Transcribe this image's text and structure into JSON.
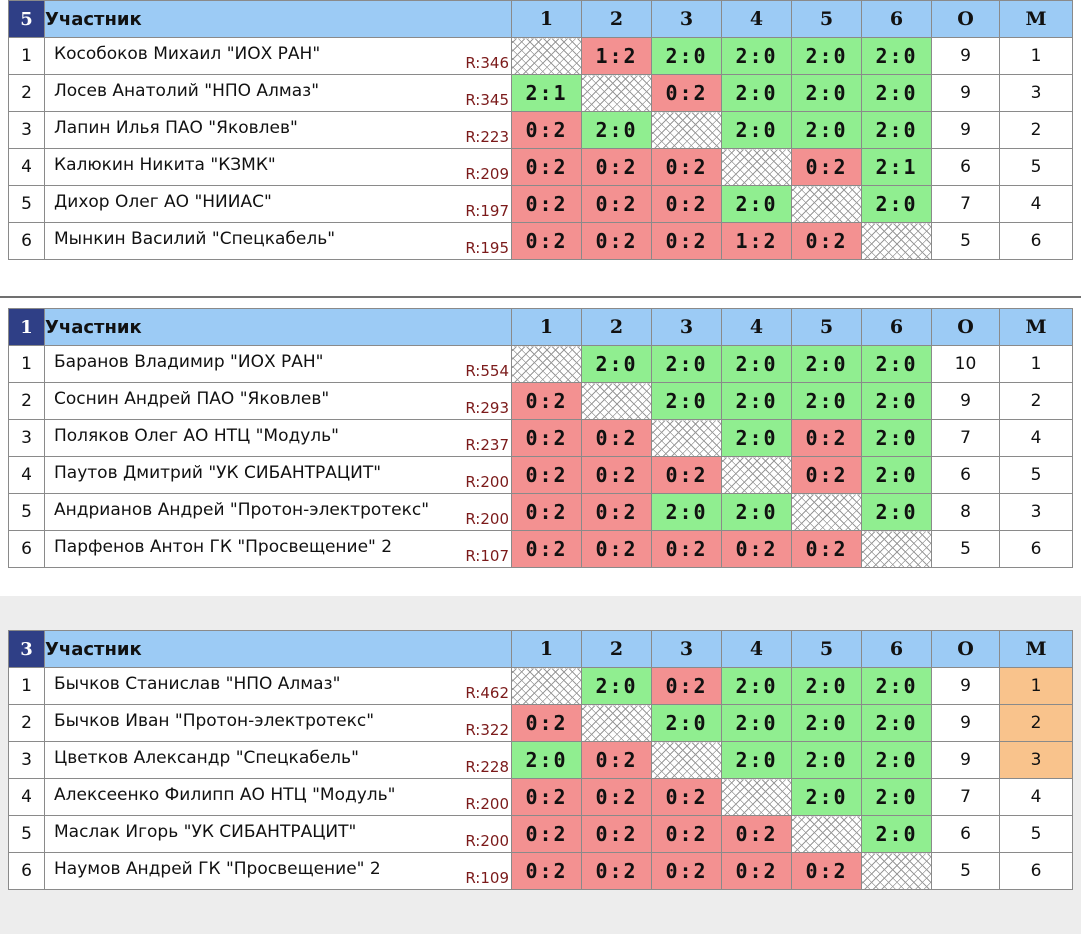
{
  "header": {
    "participant_label": "Участник",
    "cols": [
      "1",
      "2",
      "3",
      "4",
      "5",
      "6"
    ],
    "points_label": "О",
    "place_label": "М"
  },
  "groups": [
    {
      "number": "5",
      "rows": [
        {
          "n": "1",
          "name": "Кособоков Михаил \"ИОХ РАН\"",
          "rating": "R:346",
          "results": [
            "",
            "1:2",
            "2:0",
            "2:0",
            "2:0",
            "2:0"
          ],
          "o": "9",
          "m": "1"
        },
        {
          "n": "2",
          "name": "Лосев Анатолий \"НПО Алмаз\"",
          "rating": "R:345",
          "results": [
            "2:1",
            "",
            "0:2",
            "2:0",
            "2:0",
            "2:0"
          ],
          "o": "9",
          "m": "3"
        },
        {
          "n": "3",
          "name": "Лапин Илья ПАО \"Яковлев\"",
          "rating": "R:223",
          "results": [
            "0:2",
            "2:0",
            "",
            "2:0",
            "2:0",
            "2:0"
          ],
          "o": "9",
          "m": "2"
        },
        {
          "n": "4",
          "name": "Калюкин Никита \"КЗМК\"",
          "rating": "R:209",
          "results": [
            "0:2",
            "0:2",
            "0:2",
            "",
            "0:2",
            "2:1"
          ],
          "o": "6",
          "m": "5"
        },
        {
          "n": "5",
          "name": "Дихор Олег АО \"НИИАС\"",
          "rating": "R:197",
          "results": [
            "0:2",
            "0:2",
            "0:2",
            "2:0",
            "",
            "2:0"
          ],
          "o": "7",
          "m": "4"
        },
        {
          "n": "6",
          "name": "Мынкин Василий \"Спецкабель\"",
          "rating": "R:195",
          "results": [
            "0:2",
            "0:2",
            "0:2",
            "1:2",
            "0:2",
            ""
          ],
          "o": "5",
          "m": "6"
        }
      ]
    },
    {
      "number": "1",
      "rows": [
        {
          "n": "1",
          "name": "Баранов Владимир \"ИОХ РАН\"",
          "rating": "R:554",
          "results": [
            "",
            "2:0",
            "2:0",
            "2:0",
            "2:0",
            "2:0"
          ],
          "o": "10",
          "m": "1"
        },
        {
          "n": "2",
          "name": "Соснин Андрей ПАО \"Яковлев\"",
          "rating": "R:293",
          "results": [
            "0:2",
            "",
            "2:0",
            "2:0",
            "2:0",
            "2:0"
          ],
          "o": "9",
          "m": "2"
        },
        {
          "n": "3",
          "name": "Поляков Олег АО НТЦ \"Модуль\"",
          "rating": "R:237",
          "results": [
            "0:2",
            "0:2",
            "",
            "2:0",
            "0:2",
            "2:0"
          ],
          "o": "7",
          "m": "4"
        },
        {
          "n": "4",
          "name": "Паутов Дмитрий \"УК СИБАНТРАЦИТ\"",
          "rating": "R:200",
          "results": [
            "0:2",
            "0:2",
            "0:2",
            "",
            "0:2",
            "2:0"
          ],
          "o": "6",
          "m": "5"
        },
        {
          "n": "5",
          "name": "Андрианов Андрей \"Протон-электротекс\"",
          "rating": "R:200",
          "results": [
            "0:2",
            "0:2",
            "2:0",
            "2:0",
            "",
            "2:0"
          ],
          "o": "8",
          "m": "3"
        },
        {
          "n": "6",
          "name": "Парфенов Антон ГК \"Просвещение\" 2",
          "rating": "R:107",
          "results": [
            "0:2",
            "0:2",
            "0:2",
            "0:2",
            "0:2",
            ""
          ],
          "o": "5",
          "m": "6"
        }
      ]
    },
    {
      "number": "3",
      "rows": [
        {
          "n": "1",
          "name": "Бычков Станислав \"НПО Алмаз\"",
          "rating": "R:462",
          "results": [
            "",
            "2:0",
            "0:2",
            "2:0",
            "2:0",
            "2:0"
          ],
          "o": "9",
          "m": "1",
          "medal": true
        },
        {
          "n": "2",
          "name": "Бычков Иван \"Протон-электротекс\"",
          "rating": "R:322",
          "results": [
            "0:2",
            "",
            "2:0",
            "2:0",
            "2:0",
            "2:0"
          ],
          "o": "9",
          "m": "2",
          "medal": true
        },
        {
          "n": "3",
          "name": "Цветков Александр \"Спецкабель\"",
          "rating": "R:228",
          "results": [
            "2:0",
            "0:2",
            "",
            "2:0",
            "2:0",
            "2:0"
          ],
          "o": "9",
          "m": "3",
          "medal": true
        },
        {
          "n": "4",
          "name": "Алексеенко Филипп АО НТЦ \"Модуль\"",
          "rating": "R:200",
          "results": [
            "0:2",
            "0:2",
            "0:2",
            "",
            "2:0",
            "2:0"
          ],
          "o": "7",
          "m": "4"
        },
        {
          "n": "5",
          "name": "Маслак Игорь \"УК СИБАНТРАЦИТ\"",
          "rating": "R:200",
          "results": [
            "0:2",
            "0:2",
            "0:2",
            "0:2",
            "",
            "2:0"
          ],
          "o": "6",
          "m": "5"
        },
        {
          "n": "6",
          "name": "Наумов Андрей ГК \"Просвещение\" 2",
          "rating": "R:109",
          "results": [
            "0:2",
            "0:2",
            "0:2",
            "0:2",
            "0:2",
            ""
          ],
          "o": "5",
          "m": "6"
        }
      ]
    }
  ]
}
